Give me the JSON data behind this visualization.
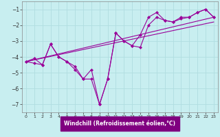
{
  "xlabel": "Windchill (Refroidissement éolien,°C)",
  "bg_color": "#c8eef0",
  "xlabel_bg": "#800080",
  "line_color": "#990099",
  "grid_color": "#b0dde0",
  "xlim": [
    -0.5,
    23.5
  ],
  "ylim": [
    -7.5,
    -0.5
  ],
  "yticks": [
    -7,
    -6,
    -5,
    -4,
    -3,
    -2,
    -1
  ],
  "xticks": [
    0,
    1,
    2,
    3,
    4,
    5,
    6,
    7,
    8,
    9,
    10,
    11,
    12,
    13,
    14,
    15,
    16,
    17,
    18,
    19,
    20,
    21,
    22,
    23
  ],
  "line1_x": [
    0,
    1,
    2,
    3,
    4,
    5,
    6,
    7,
    8,
    9,
    10,
    11,
    12,
    13,
    14,
    15,
    16,
    17,
    18,
    19,
    20,
    21,
    22,
    23
  ],
  "line1_y": [
    -4.3,
    -4.1,
    -4.5,
    -3.2,
    -4.0,
    -4.3,
    -4.6,
    -5.4,
    -4.8,
    -7.0,
    -5.4,
    -2.5,
    -3.0,
    -3.3,
    -2.6,
    -1.5,
    -1.2,
    -1.7,
    -1.8,
    -1.5,
    -1.5,
    -1.2,
    -1.0,
    -1.5
  ],
  "line2_x": [
    0,
    1,
    2,
    3,
    4,
    5,
    6,
    7,
    8,
    9,
    10,
    11,
    12,
    13,
    14,
    15,
    16,
    17,
    18,
    19,
    20,
    21,
    22,
    23
  ],
  "line2_y": [
    -4.3,
    -4.4,
    -4.5,
    -3.2,
    -4.0,
    -4.3,
    -4.8,
    -5.4,
    -5.4,
    -7.0,
    -5.4,
    -2.5,
    -3.0,
    -3.3,
    -3.4,
    -2.0,
    -1.5,
    -1.7,
    -1.8,
    -1.6,
    -1.5,
    -1.2,
    -1.0,
    -1.5
  ],
  "line3_x": [
    0,
    23
  ],
  "line3_y": [
    -4.3,
    -1.5
  ],
  "line4_x": [
    0,
    23
  ],
  "line4_y": [
    -4.3,
    -1.8
  ]
}
